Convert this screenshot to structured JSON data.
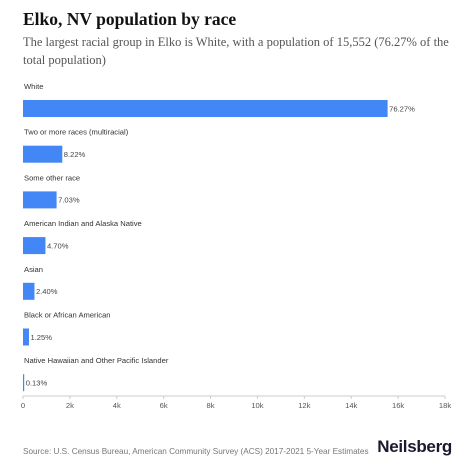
{
  "header": {
    "title": "Elko, NV population by race",
    "subtitle": "The largest racial group in Elko is White, with a population of 15,552 (76.27% of the total population)"
  },
  "footer": {
    "source": "Source: U.S. Census Bureau, American Community Survey (ACS) 2017-2021 5-Year Estimates",
    "brand": "Neilsberg"
  },
  "chart_data": {
    "type": "bar",
    "orientation": "horizontal",
    "title": "Elko, NV population by race",
    "categories": [
      "White",
      "Two or more races (multiracial)",
      "Some other race",
      "American Indian and Alaska Native",
      "Asian",
      "Black or African American",
      "Native Hawaiian and Other Pacific Islander"
    ],
    "values": [
      15552,
      1676,
      1433,
      958,
      489,
      255,
      27
    ],
    "data_labels": [
      "76.27%",
      "8.22%",
      "7.03%",
      "4.70%",
      "2.40%",
      "1.25%",
      "0.13%"
    ],
    "xlim": [
      0,
      18000
    ],
    "x_ticks": [
      0,
      2000,
      4000,
      6000,
      8000,
      10000,
      12000,
      14000,
      16000,
      18000
    ],
    "x_tick_labels": [
      "0",
      "2k",
      "4k",
      "6k",
      "8k",
      "10k",
      "12k",
      "14k",
      "16k",
      "18k"
    ],
    "bar_color": "#4287f5",
    "grid": false,
    "legend": "none"
  }
}
